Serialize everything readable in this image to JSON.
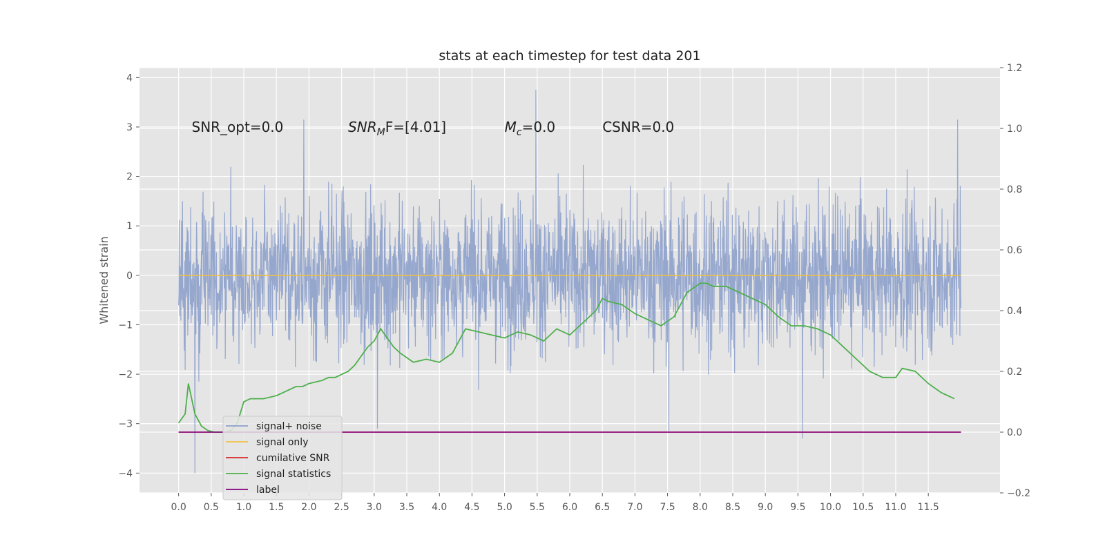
{
  "chart_data": {
    "type": "line",
    "title": "stats at each timestep for test data 201",
    "xlabel": "",
    "ylabel": "Whitened strain",
    "y2label": "",
    "xlim": [
      -0.6,
      12.6
    ],
    "ylim": [
      -4.4,
      4.2
    ],
    "y2lim": [
      -0.2,
      1.2
    ],
    "xticks": [
      "0.0",
      "0.5",
      "1.0",
      "1.5",
      "2.0",
      "2.5",
      "3.0",
      "3.5",
      "4.0",
      "4.5",
      "5.0",
      "5.5",
      "6.0",
      "6.5",
      "7.0",
      "7.5",
      "8.0",
      "8.5",
      "9.0",
      "9.5",
      "10.0",
      "10.5",
      "11.0",
      "11.5"
    ],
    "yticks": [
      "−4",
      "−3",
      "−2",
      "−1",
      "0",
      "1",
      "2",
      "3",
      "4"
    ],
    "y2ticks": [
      "−0.2",
      "0.0",
      "0.2",
      "0.4",
      "0.6",
      "0.8",
      "1.0",
      "1.2"
    ],
    "grid": true,
    "legend_position": "lower-left",
    "annotations": [
      {
        "label": "SNR_opt=0.0",
        "x": 0.2,
        "y": 3.0
      },
      {
        "label_base": "SNR",
        "label_sub": "M",
        "label_rest": "F=[4.01]",
        "x": 2.6,
        "y": 3.0
      },
      {
        "label_base": "M",
        "label_sub": "c",
        "label_rest": "=0.0",
        "x": 5.0,
        "y": 3.0
      },
      {
        "label": "CSNR=0.0",
        "x": 6.5,
        "y": 3.0
      }
    ],
    "series": [
      {
        "name": "signal+ noise",
        "axis": "left",
        "color": "#8da0cb",
        "style": "dense noise trace",
        "x_range": [
          0.0,
          12.0
        ],
        "mean": 0.0,
        "typical_range": [
          -2.0,
          2.0
        ],
        "peaks": [
          {
            "x": 0.25,
            "y": -4.0
          },
          {
            "x": 1.92,
            "y": 3.15
          },
          {
            "x": 3.05,
            "y": -3.1
          },
          {
            "x": 5.48,
            "y": 3.75
          },
          {
            "x": 7.52,
            "y": -3.15
          },
          {
            "x": 9.57,
            "y": -3.3
          },
          {
            "x": 11.95,
            "y": 3.15
          }
        ]
      },
      {
        "name": "signal only",
        "axis": "left",
        "color": "#f0c040",
        "x": [
          0.0,
          12.0
        ],
        "y": [
          0.0,
          0.0
        ]
      },
      {
        "name": "cumilative SNR",
        "axis": "right",
        "color": "#d62728",
        "x": [
          0.0,
          12.0
        ],
        "y": [
          0.0,
          0.0
        ]
      },
      {
        "name": "signal statistics",
        "axis": "right",
        "color": "#4daf4a",
        "x": [
          0.0,
          0.1,
          0.15,
          0.25,
          0.35,
          0.45,
          0.55,
          0.7,
          0.8,
          0.9,
          1.0,
          1.1,
          1.2,
          1.3,
          1.5,
          1.6,
          1.7,
          1.8,
          1.9,
          2.0,
          2.2,
          2.3,
          2.4,
          2.6,
          2.7,
          2.8,
          2.9,
          3.0,
          3.1,
          3.2,
          3.3,
          3.4,
          3.6,
          3.8,
          4.0,
          4.2,
          4.4,
          4.6,
          4.8,
          5.0,
          5.2,
          5.4,
          5.6,
          5.8,
          6.0,
          6.2,
          6.4,
          6.5,
          6.6,
          6.8,
          7.0,
          7.2,
          7.4,
          7.6,
          7.8,
          8.0,
          8.1,
          8.2,
          8.4,
          8.6,
          8.8,
          9.0,
          9.2,
          9.4,
          9.6,
          9.8,
          10.0,
          10.2,
          10.4,
          10.6,
          10.8,
          11.0,
          11.1,
          11.3,
          11.5,
          11.7,
          11.9
        ],
        "y": [
          0.03,
          0.06,
          0.16,
          0.06,
          0.02,
          0.005,
          0.0,
          0.0,
          0.005,
          0.03,
          0.1,
          0.11,
          0.11,
          0.11,
          0.12,
          0.13,
          0.14,
          0.15,
          0.15,
          0.16,
          0.17,
          0.18,
          0.18,
          0.2,
          0.22,
          0.25,
          0.28,
          0.3,
          0.34,
          0.31,
          0.28,
          0.26,
          0.23,
          0.24,
          0.23,
          0.26,
          0.34,
          0.33,
          0.32,
          0.31,
          0.33,
          0.32,
          0.3,
          0.34,
          0.32,
          0.36,
          0.4,
          0.44,
          0.43,
          0.42,
          0.39,
          0.37,
          0.35,
          0.38,
          0.46,
          0.49,
          0.49,
          0.48,
          0.48,
          0.46,
          0.44,
          0.42,
          0.38,
          0.35,
          0.35,
          0.34,
          0.32,
          0.28,
          0.24,
          0.2,
          0.18,
          0.18,
          0.21,
          0.2,
          0.16,
          0.13,
          0.11
        ]
      },
      {
        "name": "label",
        "axis": "right",
        "color": "#800080",
        "x": [
          0.0,
          12.0
        ],
        "y": [
          0.0,
          0.0
        ]
      }
    ]
  }
}
